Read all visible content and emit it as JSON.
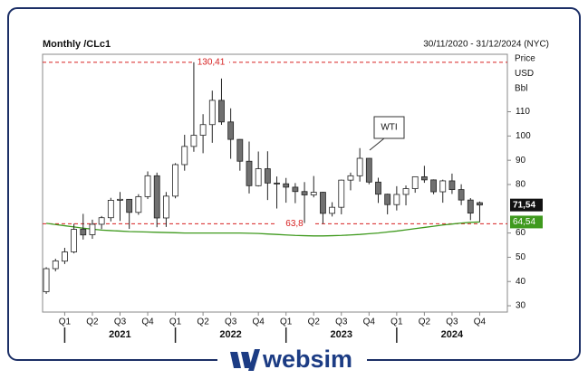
{
  "chart_data": {
    "type": "candlestick",
    "title": "Monthly /CLc1",
    "date_range": "30/11/2020 - 31/12/2024 (NYC)",
    "unit_labels": [
      "Price",
      "USD",
      "Bbl"
    ],
    "categories": [
      null,
      null,
      null,
      null,
      null,
      null,
      null,
      null,
      null,
      null,
      null,
      null,
      null,
      null,
      null,
      null,
      null,
      null,
      null,
      null,
      null,
      null,
      null,
      null,
      null,
      null,
      null,
      null,
      null,
      null,
      null,
      null,
      null,
      null,
      null,
      null,
      null,
      null,
      null,
      null,
      null,
      null,
      null,
      null,
      null,
      null,
      null,
      null
    ],
    "open": [
      35.8,
      45.3,
      48.4,
      52.2,
      61.6,
      59.3,
      63.6,
      66.3,
      73.5,
      73.9,
      68.5,
      75.0,
      83.6,
      66.2,
      75.2,
      88.2,
      95.7,
      100.3,
      104.7,
      114.7,
      105.8,
      98.6,
      89.6,
      79.5,
      86.5,
      80.6,
      80.3,
      78.9,
      77.1,
      75.7,
      76.8,
      68.1,
      70.6,
      81.8,
      83.6,
      90.8,
      81.0,
      76.0,
      71.7,
      75.9,
      78.3,
      83.2,
      81.9,
      77.0,
      81.5,
      77.9,
      73.6,
      72.5
    ],
    "high": [
      45.9,
      49.4,
      53.9,
      63.8,
      67.9,
      65.5,
      67.0,
      74.5,
      76.9,
      74.0,
      76.0,
      85.4,
      84.9,
      76.9,
      88.8,
      100.5,
      130.41,
      109.0,
      118.7,
      123.7,
      111.4,
      98.7,
      97.7,
      93.6,
      93.7,
      83.3,
      82.7,
      80.6,
      81.0,
      83.5,
      77.0,
      72.7,
      82.0,
      84.9,
      95.0,
      90.9,
      82.8,
      76.2,
      79.3,
      79.6,
      83.1,
      87.7,
      82.1,
      82.0,
      84.5,
      80.1,
      74.4,
      73.0
    ],
    "low": [
      34.9,
      44.2,
      47.2,
      51.6,
      57.3,
      57.6,
      61.6,
      64.8,
      65.0,
      61.7,
      67.5,
      74.0,
      62.4,
      62.5,
      74.3,
      85.7,
      93.5,
      92.9,
      97.2,
      104.6,
      90.6,
      85.7,
      76.3,
      79.2,
      73.6,
      70.1,
      72.5,
      72.3,
      64.1,
      74.7,
      63.8,
      66.8,
      67.7,
      77.6,
      81.2,
      80.1,
      72.4,
      67.7,
      69.3,
      71.4,
      76.6,
      80.7,
      76.0,
      72.5,
      76.1,
      71.5,
      65.3,
      64.5
    ],
    "close": [
      45.3,
      48.5,
      52.2,
      61.5,
      59.2,
      63.6,
      66.3,
      73.5,
      73.9,
      68.5,
      75.0,
      83.6,
      66.2,
      75.2,
      88.2,
      95.7,
      100.3,
      104.7,
      114.7,
      105.8,
      98.6,
      89.6,
      79.5,
      86.5,
      80.6,
      80.3,
      78.9,
      77.1,
      75.7,
      76.8,
      68.1,
      70.6,
      81.8,
      83.6,
      90.8,
      81.0,
      76.0,
      71.7,
      75.9,
      78.3,
      83.2,
      81.9,
      77.0,
      81.5,
      77.9,
      73.6,
      68.2,
      71.54
    ],
    "up_color": "#ffffff",
    "down_color": "#707070",
    "series": [
      {
        "color": "#3f9a1e",
        "values": [
          64.0,
          63.5,
          63.0,
          62.5,
          62.0,
          61.6,
          61.2,
          61.0,
          60.8,
          60.6,
          60.5,
          60.4,
          60.3,
          60.2,
          60.1,
          60.0,
          60.0,
          60.0,
          60.0,
          60.0,
          60.0,
          60.0,
          59.9,
          59.8,
          59.6,
          59.4,
          59.2,
          59.0,
          58.9,
          58.8,
          58.8,
          58.9,
          59.0,
          59.2,
          59.4,
          59.7,
          60.0,
          60.4,
          60.8,
          61.3,
          61.8,
          62.3,
          62.8,
          63.3,
          63.7,
          64.1,
          64.4,
          64.54
        ]
      }
    ],
    "ref_lines": [
      {
        "value": 130.41,
        "label": "130,41",
        "color": "#d62020"
      },
      {
        "value": 63.8,
        "label": "63,8",
        "color": "#d62020"
      }
    ],
    "last_price": {
      "value": 71.54,
      "label": "71,54"
    },
    "ma_last": {
      "value": 64.54,
      "label": "64,54"
    },
    "annotation": "WTI",
    "ylim": [
      27.4,
      133.7
    ],
    "yticks": [
      30,
      40,
      50,
      60,
      80,
      90,
      100,
      110
    ],
    "xlim": [
      -0.4,
      50
    ],
    "xticks": [
      {
        "value": 2,
        "label": "Q1"
      },
      {
        "value": 5,
        "label": "Q2"
      },
      {
        "value": 8,
        "label": "Q3"
      },
      {
        "value": 11,
        "label": "Q4"
      },
      {
        "value": 14,
        "label": "Q1"
      },
      {
        "value": 17,
        "label": "Q2"
      },
      {
        "value": 20,
        "label": "Q3"
      },
      {
        "value": 23,
        "label": "Q4"
      },
      {
        "value": 26,
        "label": "Q1"
      },
      {
        "value": 29,
        "label": "Q2"
      },
      {
        "value": 32,
        "label": "Q3"
      },
      {
        "value": 35,
        "label": "Q4"
      },
      {
        "value": 38,
        "label": "Q1"
      },
      {
        "value": 41,
        "label": "Q2"
      },
      {
        "value": 44,
        "label": "Q3"
      },
      {
        "value": 47,
        "label": "Q4"
      }
    ],
    "year_ticks": [
      {
        "value": 2,
        "label": "2021"
      },
      {
        "value": 14,
        "label": "2022"
      },
      {
        "value": 26,
        "label": "2023"
      },
      {
        "value": 38,
        "label": "2024"
      }
    ]
  },
  "brand": "websim"
}
